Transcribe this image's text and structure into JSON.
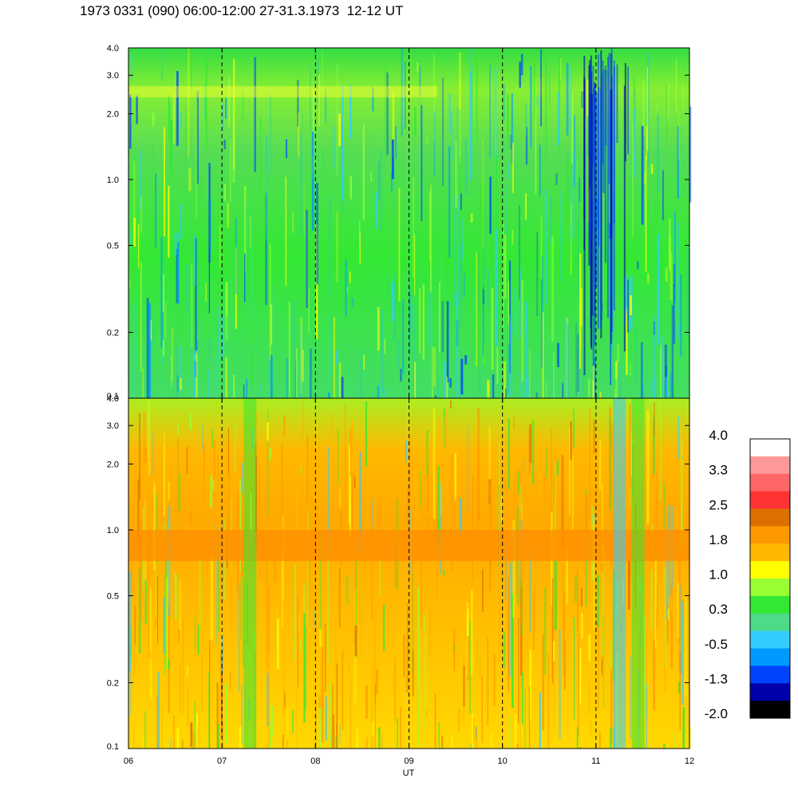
{
  "title": "1973 0331 (090) 06:00-12:00 27-31.3.1973  12-12 UT",
  "chart_data": [
    {
      "type": "heatmap",
      "panel": "upper",
      "x_ticks": [
        "06",
        "07",
        "08",
        "09",
        "10",
        "11",
        "12"
      ],
      "x_range": [
        6,
        12
      ],
      "y_scale": "log",
      "y_range": [
        0.1,
        4.0
      ],
      "y_ticks": [
        {
          "value": 4.0,
          "label": "4.0"
        },
        {
          "value": 3.0,
          "label": "3.0"
        },
        {
          "value": 2.0,
          "label": "2.0"
        },
        {
          "value": 1.0,
          "label": "1.0"
        },
        {
          "value": 0.5,
          "label": "0.5"
        },
        {
          "value": 0.2,
          "label": "0.2"
        },
        {
          "value": 0.1,
          "label": "0.1"
        }
      ],
      "hour_markers": [
        7,
        8,
        9,
        10,
        11
      ]
    },
    {
      "type": "heatmap",
      "panel": "lower",
      "x_ticks": [
        "06",
        "07",
        "08",
        "09",
        "10",
        "11",
        "12"
      ],
      "x_range": [
        6,
        12
      ],
      "xlabel": "UT",
      "y_scale": "log",
      "y_range": [
        0.1,
        4.0
      ],
      "y_ticks": [
        {
          "value": 4.0,
          "label": "4.0"
        },
        {
          "value": 3.0,
          "label": "3.0"
        },
        {
          "value": 2.0,
          "label": "2.0"
        },
        {
          "value": 1.0,
          "label": "1.0"
        },
        {
          "value": 0.5,
          "label": "0.5"
        },
        {
          "value": 0.2,
          "label": "0.2"
        },
        {
          "value": 0.1,
          "label": "0.1"
        }
      ],
      "hour_markers": [
        7,
        8,
        9,
        10,
        11
      ]
    }
  ],
  "colorbar": {
    "labels": [
      "4.0",
      "3.3",
      "2.5",
      "1.8",
      "1.0",
      "0.3",
      "-0.5",
      "-1.3",
      "-2.0"
    ],
    "colors": [
      "#ffffff",
      "#ff9999",
      "#ff6666",
      "#ff3333",
      "#dd6e00",
      "#ff9900",
      "#ffb800",
      "#ffff00",
      "#99ff33",
      "#33e833",
      "#4ddb88",
      "#33ccff",
      "#0099ff",
      "#0044ff",
      "#0000aa",
      "#000000"
    ]
  }
}
